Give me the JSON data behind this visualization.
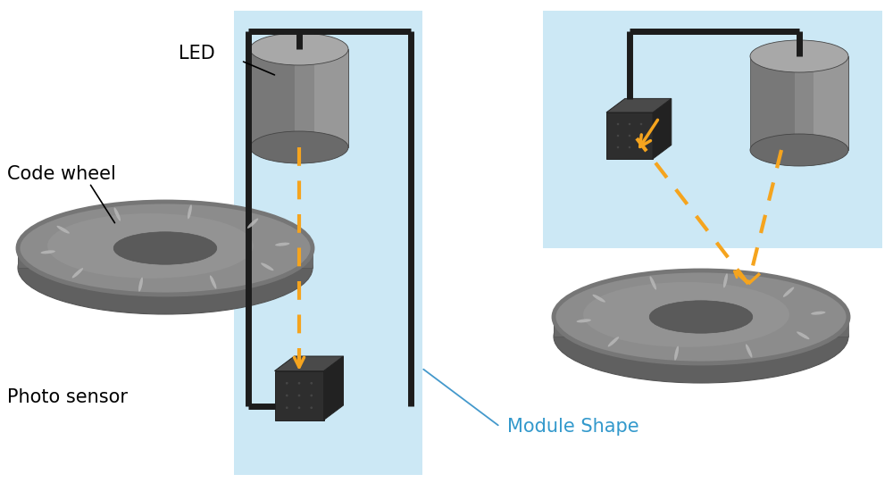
{
  "bg_color": "#ffffff",
  "light_blue": "#cce8f5",
  "orange": "#f5a41e",
  "blue_text": "#3399cc",
  "black_wire": "#1c1c1c",
  "label_LED": "LED",
  "label_code_wheel": "Code wheel",
  "label_photo_sensor": "Photo sensor",
  "label_module_shape": "Module Shape",
  "cyl_top_color": "#a8a8a8",
  "cyl_side_color": "#888888",
  "cyl_dark": "#6a6a6a",
  "disk_top": "#8c8c8c",
  "disk_rim": "#767676",
  "disk_side": "#6a6a6a",
  "disk_bot": "#606060",
  "disk_inner": "#5a5a5a",
  "disk_inner2": "#707070",
  "cube_front": "#2e2e2e",
  "cube_top": "#4a4a4a",
  "cube_right": "#222222",
  "notch_color": "#b8b8b8"
}
